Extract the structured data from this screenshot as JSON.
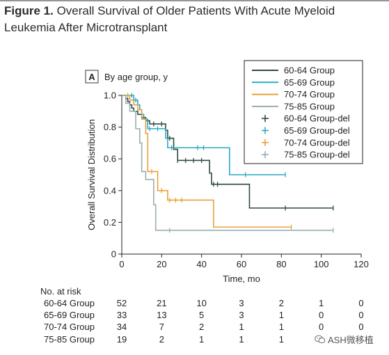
{
  "figure": {
    "title_bold": "Figure 1.",
    "title_rest": " Overall Survival of Older Patients With Acute Myeloid Leukemia After Microtransplant"
  },
  "chart_data": {
    "type": "line",
    "step": true,
    "panel_label": "A",
    "subtitle": "By age group, y",
    "xlabel": "Time, mo",
    "ylabel": "Overall Survival Distribution",
    "xlim": [
      0,
      120
    ],
    "ylim": [
      0,
      1.0
    ],
    "xticks": [
      0,
      20,
      40,
      60,
      80,
      100,
      120
    ],
    "yticks": [
      0,
      0.2,
      0.4,
      0.6,
      0.8,
      1.0
    ],
    "ytick_labels": [
      "0",
      "0.2",
      "0.4",
      "0.6",
      "0.8",
      "1.0"
    ],
    "legend_position": "top-right",
    "series": [
      {
        "name": "60-64 Group",
        "censor_name": "60-64 Group-del",
        "color": "#2d4a45",
        "x": [
          0,
          2,
          3,
          4,
          5,
          6,
          8,
          10,
          12,
          14,
          22,
          23,
          26,
          28,
          44,
          45,
          64,
          106
        ],
        "y": [
          1.0,
          0.98,
          0.96,
          0.94,
          0.92,
          0.9,
          0.88,
          0.86,
          0.84,
          0.82,
          0.78,
          0.73,
          0.66,
          0.59,
          0.51,
          0.44,
          0.29,
          0.29
        ],
        "censored": [
          [
            16,
            0.82
          ],
          [
            20,
            0.82
          ],
          [
            24,
            0.73
          ],
          [
            28,
            0.59
          ],
          [
            32,
            0.59
          ],
          [
            36,
            0.59
          ],
          [
            40,
            0.59
          ],
          [
            46,
            0.44
          ],
          [
            48,
            0.44
          ],
          [
            82,
            0.29
          ],
          [
            106,
            0.29
          ]
        ]
      },
      {
        "name": "65-69 Group",
        "censor_name": "65-69 Group-del",
        "color": "#29a9c7",
        "x": [
          0,
          6,
          8,
          9,
          10,
          11,
          13,
          22,
          23,
          54,
          82
        ],
        "y": [
          1.0,
          0.97,
          0.94,
          0.91,
          0.88,
          0.85,
          0.79,
          0.73,
          0.67,
          0.5,
          0.5
        ],
        "censored": [
          [
            5,
            1.0
          ],
          [
            7,
            0.97
          ],
          [
            14,
            0.79
          ],
          [
            18,
            0.79
          ],
          [
            25,
            0.67
          ],
          [
            38,
            0.67
          ],
          [
            41,
            0.67
          ],
          [
            62,
            0.5
          ],
          [
            82,
            0.5
          ]
        ]
      },
      {
        "name": "70-74 Group",
        "censor_name": "70-74 Group-del",
        "color": "#e6a23c",
        "x": [
          0,
          4,
          6,
          8,
          10,
          12,
          13,
          14,
          18,
          23,
          46,
          85
        ],
        "y": [
          1.0,
          0.97,
          0.94,
          0.91,
          0.85,
          0.76,
          0.52,
          0.52,
          0.4,
          0.34,
          0.17,
          0.17
        ],
        "censored": [
          [
            3,
            1.0
          ],
          [
            15,
            0.52
          ],
          [
            20,
            0.4
          ],
          [
            24,
            0.34
          ],
          [
            27,
            0.34
          ],
          [
            30,
            0.34
          ],
          [
            85,
            0.17
          ]
        ]
      },
      {
        "name": "75-85 Group",
        "censor_name": "75-85 Group-del",
        "color": "#9aaeae",
        "x": [
          0,
          2,
          4,
          7,
          9,
          10,
          12,
          16,
          17,
          106
        ],
        "y": [
          1.0,
          0.95,
          0.9,
          0.79,
          0.7,
          0.52,
          0.47,
          0.31,
          0.15,
          0.15
        ],
        "censored": [
          [
            24,
            0.15
          ],
          [
            106,
            0.15
          ]
        ]
      }
    ]
  },
  "risk_table": {
    "title": "No. at risk",
    "times": [
      0,
      20,
      40,
      60,
      80,
      100,
      120
    ],
    "rows": [
      {
        "label": "60-64 Group",
        "values": [
          "52",
          "21",
          "10",
          "3",
          "2",
          "1",
          "0"
        ]
      },
      {
        "label": "65-69 Group",
        "values": [
          "33",
          "13",
          "5",
          "3",
          "1",
          "0",
          "0"
        ]
      },
      {
        "label": "70-74 Group",
        "values": [
          "34",
          "7",
          "2",
          "1",
          "1",
          "0",
          "0"
        ]
      },
      {
        "label": "75-85 Group",
        "values": [
          "19",
          "2",
          "1",
          "1",
          "1",
          "",
          ""
        ]
      }
    ]
  },
  "watermark": {
    "text": "ASH微移植"
  }
}
